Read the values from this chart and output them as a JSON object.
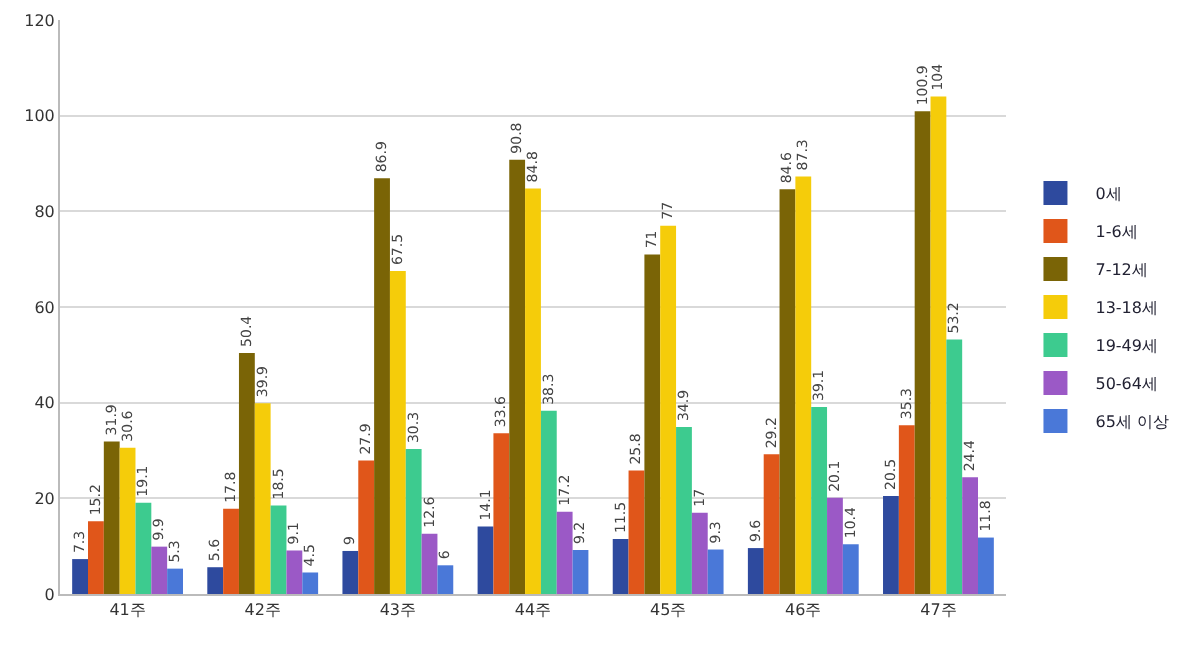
{
  "chart_data": {
    "type": "bar",
    "categories": [
      "41주",
      "42주",
      "43주",
      "44주",
      "45주",
      "46주",
      "47주"
    ],
    "series": [
      {
        "name": "0세",
        "color": "#2e4a9e",
        "values": [
          7.3,
          5.6,
          9,
          14.1,
          11.5,
          9.6,
          20.5
        ]
      },
      {
        "name": "1-6세",
        "color": "#e0561a",
        "values": [
          15.2,
          17.8,
          27.9,
          33.6,
          25.8,
          29.2,
          35.3
        ]
      },
      {
        "name": "7-12세",
        "color": "#7a6406",
        "values": [
          31.9,
          50.4,
          86.9,
          90.8,
          71,
          84.6,
          100.9
        ]
      },
      {
        "name": "13-18세",
        "color": "#f5cc0a",
        "values": [
          30.6,
          39.9,
          67.5,
          84.8,
          77,
          87.3,
          104
        ]
      },
      {
        "name": "19-49세",
        "color": "#3dcb8f",
        "values": [
          19.1,
          18.5,
          30.3,
          38.3,
          34.9,
          39.1,
          53.2
        ]
      },
      {
        "name": "50-64세",
        "color": "#9b59c6",
        "values": [
          9.9,
          9.1,
          12.6,
          17.2,
          17,
          20.1,
          24.4
        ]
      },
      {
        "name": "65세 이상",
        "color": "#4a78d8",
        "values": [
          5.3,
          4.5,
          6,
          9.2,
          9.3,
          10.4,
          11.8
        ]
      }
    ],
    "ylim": [
      0,
      120
    ],
    "yticks": [
      0,
      20,
      40,
      60,
      80,
      100,
      120
    ],
    "grid": "y",
    "legend": "right",
    "data_labels": true
  }
}
